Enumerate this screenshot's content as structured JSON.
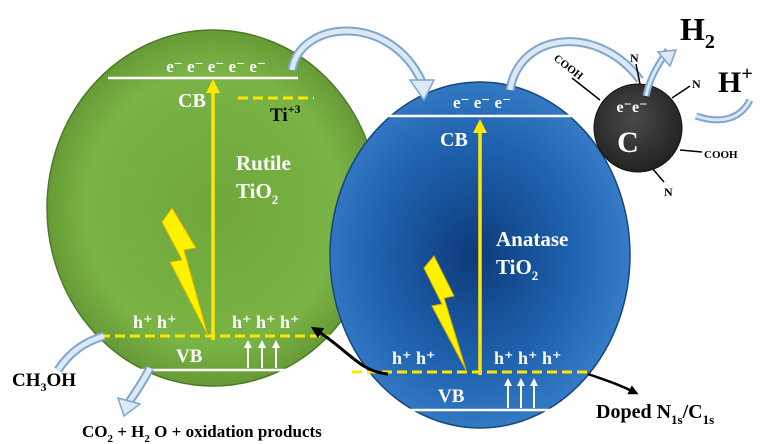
{
  "rutile": {
    "cb_electrons": "e⁻ e⁻  e⁻ e⁻ e⁻",
    "cb_label": "CB",
    "defect_label": "Ti",
    "defect_charge": "+3",
    "name_line1": "Rutile",
    "name_line2_main": "TiO",
    "name_line2_sub": "2",
    "holes_left": "h⁺ h⁺",
    "holes_right": "h⁺ h⁺ h⁺",
    "vb_label": "VB"
  },
  "anatase": {
    "cb_electrons": "e⁻ e⁻ e⁻",
    "cb_label": "CB",
    "name_line1": "Anatase",
    "name_line2_main": "TiO",
    "name_line2_sub": "2",
    "holes_left": "h⁺ h⁺",
    "holes_right": "h⁺ h⁺ h⁺",
    "vb_label": "VB"
  },
  "carbon": {
    "label": "C",
    "electrons": "e⁻e⁻",
    "group_cooh_left": "COOH",
    "group_n_top": "N",
    "group_n_right": "N",
    "group_cooh_right": "COOH",
    "group_n_bottom": "N"
  },
  "products": {
    "h2_main": "H",
    "h2_sub": "2",
    "hplus_main": "H",
    "hplus_sup": "+",
    "methanol_a": "CH",
    "methanol_sub": "3",
    "methanol_b": "OH",
    "oxidation_co": "CO",
    "oxidation_co_sub": "2",
    "oxidation_mid": " + H",
    "oxidation_h_sub": "2",
    "oxidation_end": " O + oxidation products"
  },
  "doping": {
    "label": "Doped  N",
    "n_sub": "1s",
    "slash": "/C",
    "c_sub": "1s"
  },
  "colors": {
    "rutile_green": "#6fa43a",
    "anatase_blue": "#1f63b0",
    "carbon_dark": "#3a3a3a",
    "band_yellow": "#ffe600",
    "arrow_blue": "#a9c4de"
  }
}
